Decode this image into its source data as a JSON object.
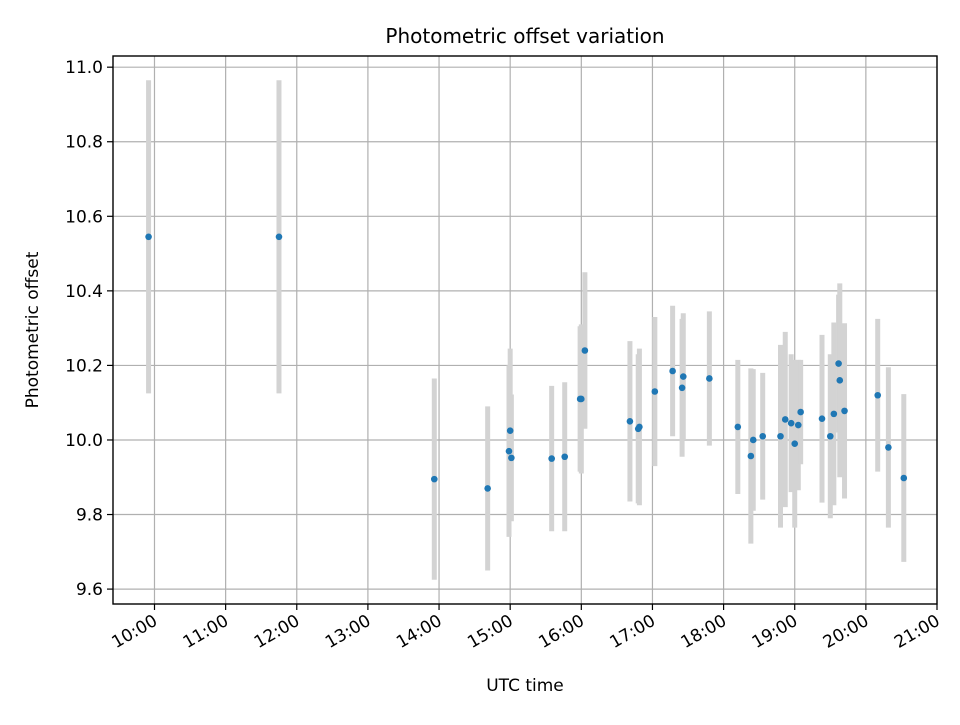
{
  "chart_data": {
    "type": "scatter",
    "title": "Photometric offset variation",
    "xlabel": "UTC time",
    "ylabel": "Photometric offset",
    "x_unit": "UTC hour of day",
    "xlim": [
      "09:25",
      "21:00"
    ],
    "ylim": [
      9.56,
      11.03
    ],
    "x_ticks": [
      "10:00",
      "11:00",
      "12:00",
      "13:00",
      "14:00",
      "15:00",
      "16:00",
      "17:00",
      "18:00",
      "19:00",
      "20:00",
      "21:00"
    ],
    "y_ticks": [
      "9.6",
      "9.8",
      "10.0",
      "10.2",
      "10.4",
      "10.6",
      "10.8",
      "11.0"
    ],
    "grid": true,
    "x_tick_rotation": 30,
    "colors": {
      "point": "#1f77b4",
      "errorbar": "#d3d3d3",
      "grid": "#b0b0b0"
    },
    "series": [
      {
        "points": [
          {
            "x": "09:55",
            "y": 10.545,
            "err": 0.42
          },
          {
            "x": "11:45",
            "y": 10.545,
            "err": 0.42
          },
          {
            "x": "13:56",
            "y": 9.895,
            "err": 0.27
          },
          {
            "x": "14:41",
            "y": 9.87,
            "err": 0.22
          },
          {
            "x": "14:59",
            "y": 9.97,
            "err": 0.23
          },
          {
            "x": "15:00",
            "y": 10.025,
            "err": 0.22
          },
          {
            "x": "15:01",
            "y": 9.952,
            "err": 0.17
          },
          {
            "x": "15:35",
            "y": 9.95,
            "err": 0.195
          },
          {
            "x": "15:46",
            "y": 9.955,
            "err": 0.2
          },
          {
            "x": "15:59",
            "y": 10.11,
            "err": 0.195
          },
          {
            "x": "16:00",
            "y": 10.11,
            "err": 0.2
          },
          {
            "x": "16:03",
            "y": 10.24,
            "err": 0.21
          },
          {
            "x": "16:41",
            "y": 10.05,
            "err": 0.215
          },
          {
            "x": "16:48",
            "y": 10.03,
            "err": 0.2
          },
          {
            "x": "16:49",
            "y": 10.035,
            "err": 0.21
          },
          {
            "x": "17:02",
            "y": 10.13,
            "err": 0.2
          },
          {
            "x": "17:17",
            "y": 10.185,
            "err": 0.175
          },
          {
            "x": "17:25",
            "y": 10.14,
            "err": 0.185
          },
          {
            "x": "17:26",
            "y": 10.17,
            "err": 0.17
          },
          {
            "x": "17:48",
            "y": 10.165,
            "err": 0.18
          },
          {
            "x": "18:12",
            "y": 10.035,
            "err": 0.18
          },
          {
            "x": "18:23",
            "y": 9.957,
            "err": 0.235
          },
          {
            "x": "18:25",
            "y": 10.0,
            "err": 0.19
          },
          {
            "x": "18:33",
            "y": 10.01,
            "err": 0.17
          },
          {
            "x": "18:48",
            "y": 10.01,
            "err": 0.245
          },
          {
            "x": "18:52",
            "y": 10.055,
            "err": 0.235
          },
          {
            "x": "18:57",
            "y": 10.045,
            "err": 0.185
          },
          {
            "x": "19:00",
            "y": 9.99,
            "err": 0.225
          },
          {
            "x": "19:03",
            "y": 10.04,
            "err": 0.175
          },
          {
            "x": "19:05",
            "y": 10.075,
            "err": 0.14
          },
          {
            "x": "19:23",
            "y": 10.057,
            "err": 0.225
          },
          {
            "x": "19:30",
            "y": 10.01,
            "err": 0.22
          },
          {
            "x": "19:33",
            "y": 10.07,
            "err": 0.245
          },
          {
            "x": "19:37",
            "y": 10.205,
            "err": 0.185
          },
          {
            "x": "19:38",
            "y": 10.16,
            "err": 0.26
          },
          {
            "x": "19:42",
            "y": 10.078,
            "err": 0.235
          },
          {
            "x": "20:10",
            "y": 10.12,
            "err": 0.205
          },
          {
            "x": "20:19",
            "y": 9.98,
            "err": 0.215
          },
          {
            "x": "20:32",
            "y": 9.898,
            "err": 0.225
          }
        ]
      }
    ]
  }
}
